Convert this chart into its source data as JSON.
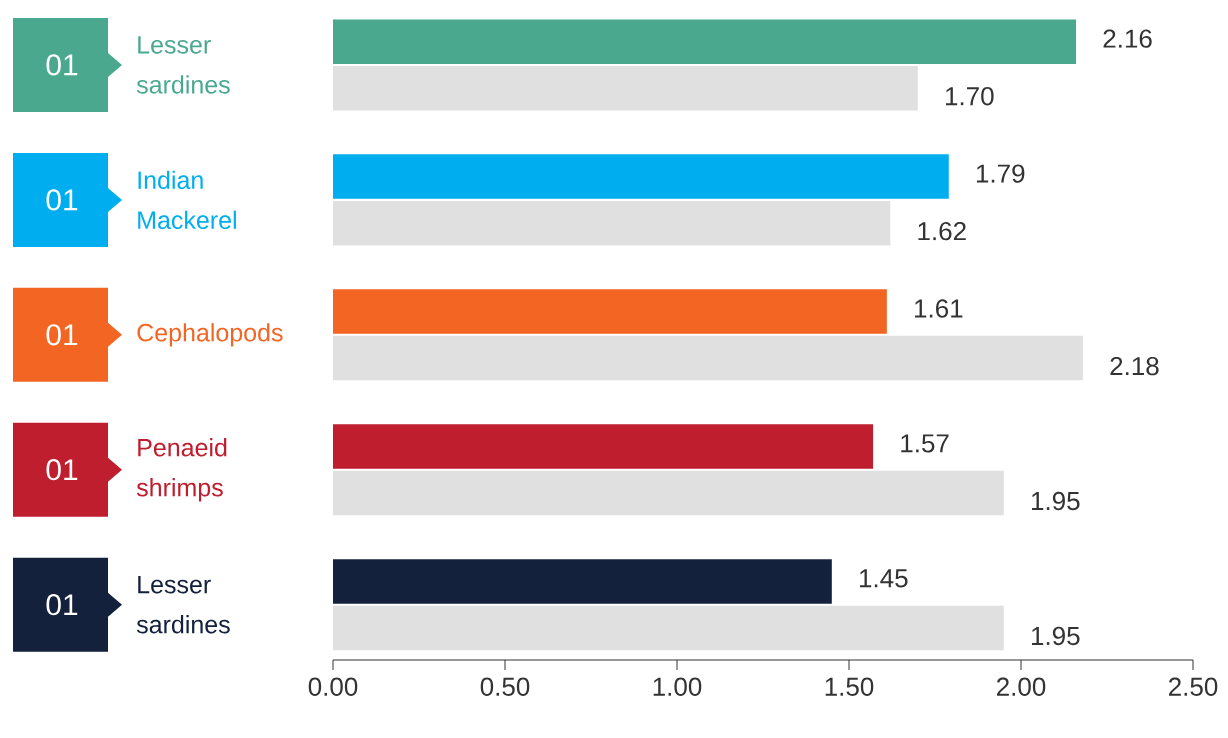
{
  "chart_data": {
    "type": "bar",
    "orientation": "horizontal",
    "categories": [
      "Lesser sardines",
      "Indian Mackerel",
      "Cephalopods",
      "Penaeid shrimps",
      "Lesser sardines"
    ],
    "series": [
      {
        "colors": [
          "#4aa88f",
          "#00aeef",
          "#f26522",
          "#be1e2d",
          "#14213d"
        ],
        "values": [
          2.16,
          1.79,
          1.61,
          1.57,
          1.45
        ],
        "value_labels": [
          "2.16",
          "1.79",
          "1.61",
          "1.57",
          "1.45"
        ]
      },
      {
        "color": "#e0e0e1",
        "values": [
          1.7,
          1.62,
          2.18,
          1.95,
          1.95
        ],
        "value_labels": [
          "1.70",
          "1.62",
          "2.18",
          "1.95",
          "1.95"
        ]
      }
    ],
    "xlim": [
      0,
      2.5
    ],
    "xticks": [
      {
        "value": 0,
        "label": "0.00"
      },
      {
        "value": 0.5,
        "label": "0.50"
      },
      {
        "value": 1,
        "label": "1.00"
      },
      {
        "value": 1.5,
        "label": "1.50"
      },
      {
        "value": 2,
        "label": "2.00"
      },
      {
        "value": 2.5,
        "label": "2.50"
      }
    ],
    "annotations": [
      "01",
      "01",
      "01",
      "01",
      "01"
    ]
  }
}
